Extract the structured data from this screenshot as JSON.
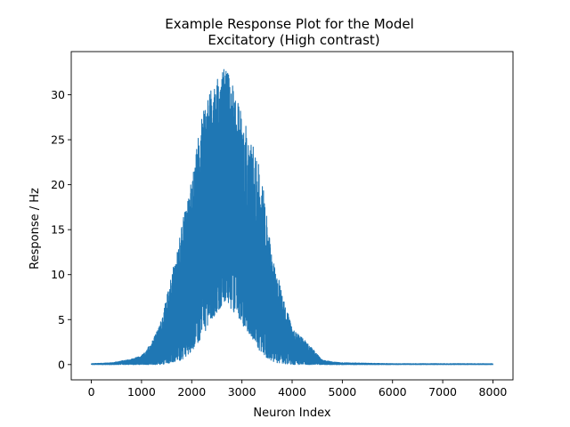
{
  "chart_data": {
    "type": "line",
    "title": "Example Response Plot for the Model",
    "subtitle": "Excitatory (High contrast)",
    "xlabel": "Neuron Index",
    "ylabel": "Response / Hz",
    "xlim": [
      -400,
      8400
    ],
    "ylim": [
      -1.7,
      34.8
    ],
    "xticks": [
      0,
      1000,
      2000,
      3000,
      4000,
      5000,
      6000,
      7000,
      8000
    ],
    "xtick_labels": [
      "0",
      "1000",
      "2000",
      "3000",
      "4000",
      "5000",
      "6000",
      "7000",
      "8000"
    ],
    "yticks": [
      0,
      5,
      10,
      15,
      20,
      25,
      30
    ],
    "ytick_labels": [
      "0",
      "5",
      "10",
      "15",
      "20",
      "25",
      "30"
    ],
    "grid": false,
    "legend": "none",
    "series": [
      {
        "color": "#1f77b4",
        "envelope": {
          "x": [
            0,
            400,
            800,
            1000,
            1200,
            1400,
            1600,
            1800,
            2000,
            2200,
            2400,
            2600,
            2700,
            2800,
            3000,
            3200,
            3400,
            3600,
            3800,
            4000,
            4200,
            4400,
            4600,
            4800,
            5000,
            6000,
            7000,
            8000
          ],
          "upper": [
            0.1,
            0.2,
            0.6,
            1.0,
            2.4,
            5.0,
            10.0,
            15.5,
            20.5,
            28.0,
            31.0,
            32.8,
            33.2,
            31.5,
            28.0,
            25.0,
            21.0,
            12.0,
            8.2,
            4.0,
            3.0,
            1.8,
            0.5,
            0.3,
            0.2,
            0.1,
            0.1,
            0.1
          ],
          "lower": [
            0.0,
            0.0,
            0.0,
            0.0,
            0.0,
            0.0,
            0.2,
            0.5,
            1.5,
            3.0,
            5.0,
            6.5,
            7.0,
            6.0,
            4.5,
            3.0,
            1.0,
            0.3,
            0.1,
            0.0,
            0.0,
            0.0,
            0.0,
            0.0,
            0.0,
            0.0,
            0.0,
            0.0
          ]
        },
        "x_range": [
          0,
          7999
        ],
        "n_points": 8000
      }
    ]
  }
}
